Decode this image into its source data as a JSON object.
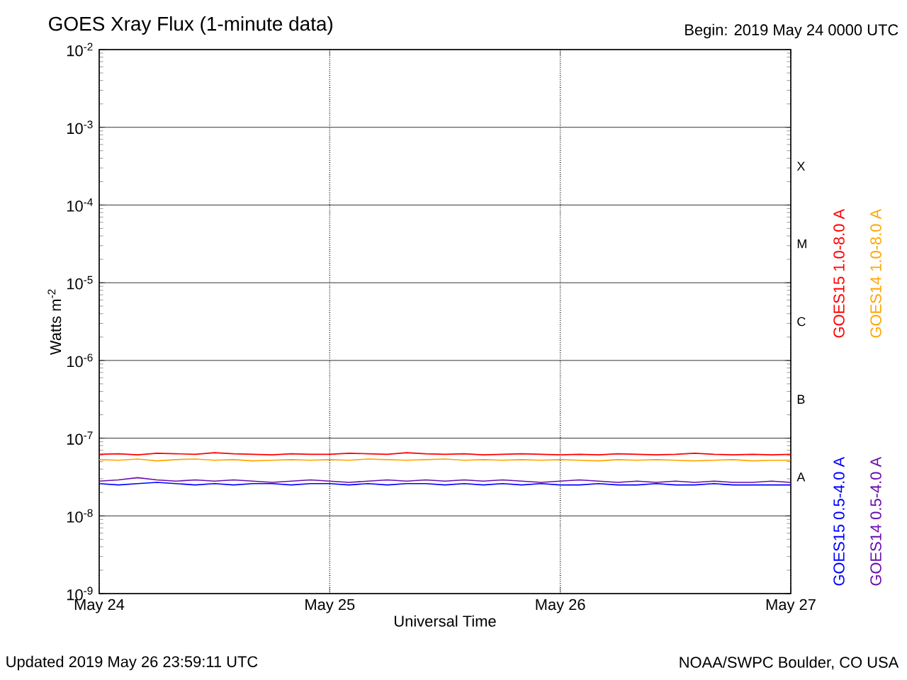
{
  "chart_data": {
    "type": "line",
    "title": "GOES Xray Flux (1-minute data)",
    "subtitle": "Begin:  2019 May 24 0000 UTC",
    "xlabel": "Universal Time",
    "ylabel": "Watts m$^{-2}$",
    "log": "y",
    "grid": true,
    "legend": "right",
    "marker": "none",
    "line_style": "solid",
    "xlim": [
      "2019-05-24T00:00",
      "2019-05-27T00:00"
    ],
    "xticks": [
      {
        "value": "2019-05-24",
        "label": "May 24"
      },
      {
        "value": "2019-05-25",
        "label": "May 25"
      },
      {
        "value": "2019-05-26",
        "label": "May 26"
      },
      {
        "value": "2019-05-27",
        "label": "May 27"
      }
    ],
    "ylim": [
      1e-09,
      0.01
    ],
    "yticks": [
      {
        "value": 1e-09,
        "label": "10$^{-9}$"
      },
      {
        "value": 1e-08,
        "label": "10$^{-8}$"
      },
      {
        "value": 1e-07,
        "label": "10$^{-7}$"
      },
      {
        "value": 1e-06,
        "label": "10$^{-6}$"
      },
      {
        "value": 1e-05,
        "label": "10$^{-5}$"
      },
      {
        "value": 0.0001,
        "label": "10$^{-4}$"
      },
      {
        "value": 0.001,
        "label": "10$^{-3}$"
      },
      {
        "value": 0.01,
        "label": "10$^{-2}$"
      }
    ],
    "x": [
      "2019-05-24T00:00",
      "2019-05-24T02:00",
      "2019-05-24T04:00",
      "2019-05-24T06:00",
      "2019-05-24T08:00",
      "2019-05-24T10:00",
      "2019-05-24T12:00",
      "2019-05-24T14:00",
      "2019-05-24T16:00",
      "2019-05-24T18:00",
      "2019-05-24T20:00",
      "2019-05-24T22:00",
      "2019-05-25T00:00",
      "2019-05-25T02:00",
      "2019-05-25T04:00",
      "2019-05-25T06:00",
      "2019-05-25T08:00",
      "2019-05-25T10:00",
      "2019-05-25T12:00",
      "2019-05-25T14:00",
      "2019-05-25T16:00",
      "2019-05-25T18:00",
      "2019-05-25T20:00",
      "2019-05-25T22:00",
      "2019-05-26T00:00",
      "2019-05-26T02:00",
      "2019-05-26T04:00",
      "2019-05-26T06:00",
      "2019-05-26T08:00",
      "2019-05-26T10:00",
      "2019-05-26T12:00",
      "2019-05-26T14:00",
      "2019-05-26T16:00",
      "2019-05-26T18:00",
      "2019-05-26T20:00",
      "2019-05-26T22:00",
      "2019-05-26T23:58"
    ],
    "series": [
      {
        "name": "GOES15 1.0-8.0 A",
        "color": "#ff0000",
        "values": [
          6.2e-08,
          6.3e-08,
          6.1e-08,
          6.4e-08,
          6.3e-08,
          6.2e-08,
          6.5e-08,
          6.3e-08,
          6.2e-08,
          6.1e-08,
          6.3e-08,
          6.2e-08,
          6.2e-08,
          6.4e-08,
          6.3e-08,
          6.2e-08,
          6.5e-08,
          6.3e-08,
          6.2e-08,
          6.3e-08,
          6.1e-08,
          6.2e-08,
          6.3e-08,
          6.2e-08,
          6.1e-08,
          6.2e-08,
          6.1e-08,
          6.3e-08,
          6.2e-08,
          6.1e-08,
          6.2e-08,
          6.4e-08,
          6.2e-08,
          6.1e-08,
          6.2e-08,
          6.1e-08,
          6.2e-08
        ]
      },
      {
        "name": "GOES14 1.0-8.0 A",
        "color": "#ffa500",
        "values": [
          5.3e-08,
          5.2e-08,
          5.4e-08,
          5.1e-08,
          5.3e-08,
          5.4e-08,
          5.2e-08,
          5.3e-08,
          5.1e-08,
          5.2e-08,
          5.3e-08,
          5.2e-08,
          5.3e-08,
          5.2e-08,
          5.4e-08,
          5.3e-08,
          5.2e-08,
          5.3e-08,
          5.4e-08,
          5.2e-08,
          5.3e-08,
          5.2e-08,
          5.3e-08,
          5.2e-08,
          5.3e-08,
          5.2e-08,
          5.1e-08,
          5.3e-08,
          5.2e-08,
          5.3e-08,
          5.2e-08,
          5.1e-08,
          5.2e-08,
          5.3e-08,
          5.1e-08,
          5.2e-08,
          5.2e-08
        ]
      },
      {
        "name": "GOES15 0.5-4.0 A",
        "color": "#0000ff",
        "values": [
          2.6e-08,
          2.5e-08,
          2.6e-08,
          2.7e-08,
          2.6e-08,
          2.5e-08,
          2.6e-08,
          2.5e-08,
          2.6e-08,
          2.6e-08,
          2.5e-08,
          2.6e-08,
          2.6e-08,
          2.5e-08,
          2.6e-08,
          2.5e-08,
          2.6e-08,
          2.6e-08,
          2.5e-08,
          2.6e-08,
          2.5e-08,
          2.6e-08,
          2.5e-08,
          2.6e-08,
          2.5e-08,
          2.5e-08,
          2.6e-08,
          2.5e-08,
          2.5e-08,
          2.6e-08,
          2.5e-08,
          2.5e-08,
          2.6e-08,
          2.5e-08,
          2.5e-08,
          2.5e-08,
          2.5e-08
        ]
      },
      {
        "name": "GOES14 0.5-4.0 A",
        "color": "#6a0dad",
        "values": [
          2.8e-08,
          2.9e-08,
          3.1e-08,
          2.9e-08,
          2.8e-08,
          2.9e-08,
          2.8e-08,
          2.9e-08,
          2.8e-08,
          2.7e-08,
          2.8e-08,
          2.9e-08,
          2.8e-08,
          2.7e-08,
          2.8e-08,
          2.9e-08,
          2.8e-08,
          2.9e-08,
          2.8e-08,
          2.9e-08,
          2.8e-08,
          2.9e-08,
          2.8e-08,
          2.7e-08,
          2.8e-08,
          2.9e-08,
          2.8e-08,
          2.7e-08,
          2.8e-08,
          2.7e-08,
          2.8e-08,
          2.7e-08,
          2.8e-08,
          2.7e-08,
          2.7e-08,
          2.8e-08,
          2.7e-08
        ]
      }
    ],
    "annotations": [
      "X",
      "M",
      "C",
      "B",
      "A",
      "Updated 2019 May 26 23:59:11 UTC",
      "NOAA/SWPC Boulder, CO USA"
    ]
  }
}
